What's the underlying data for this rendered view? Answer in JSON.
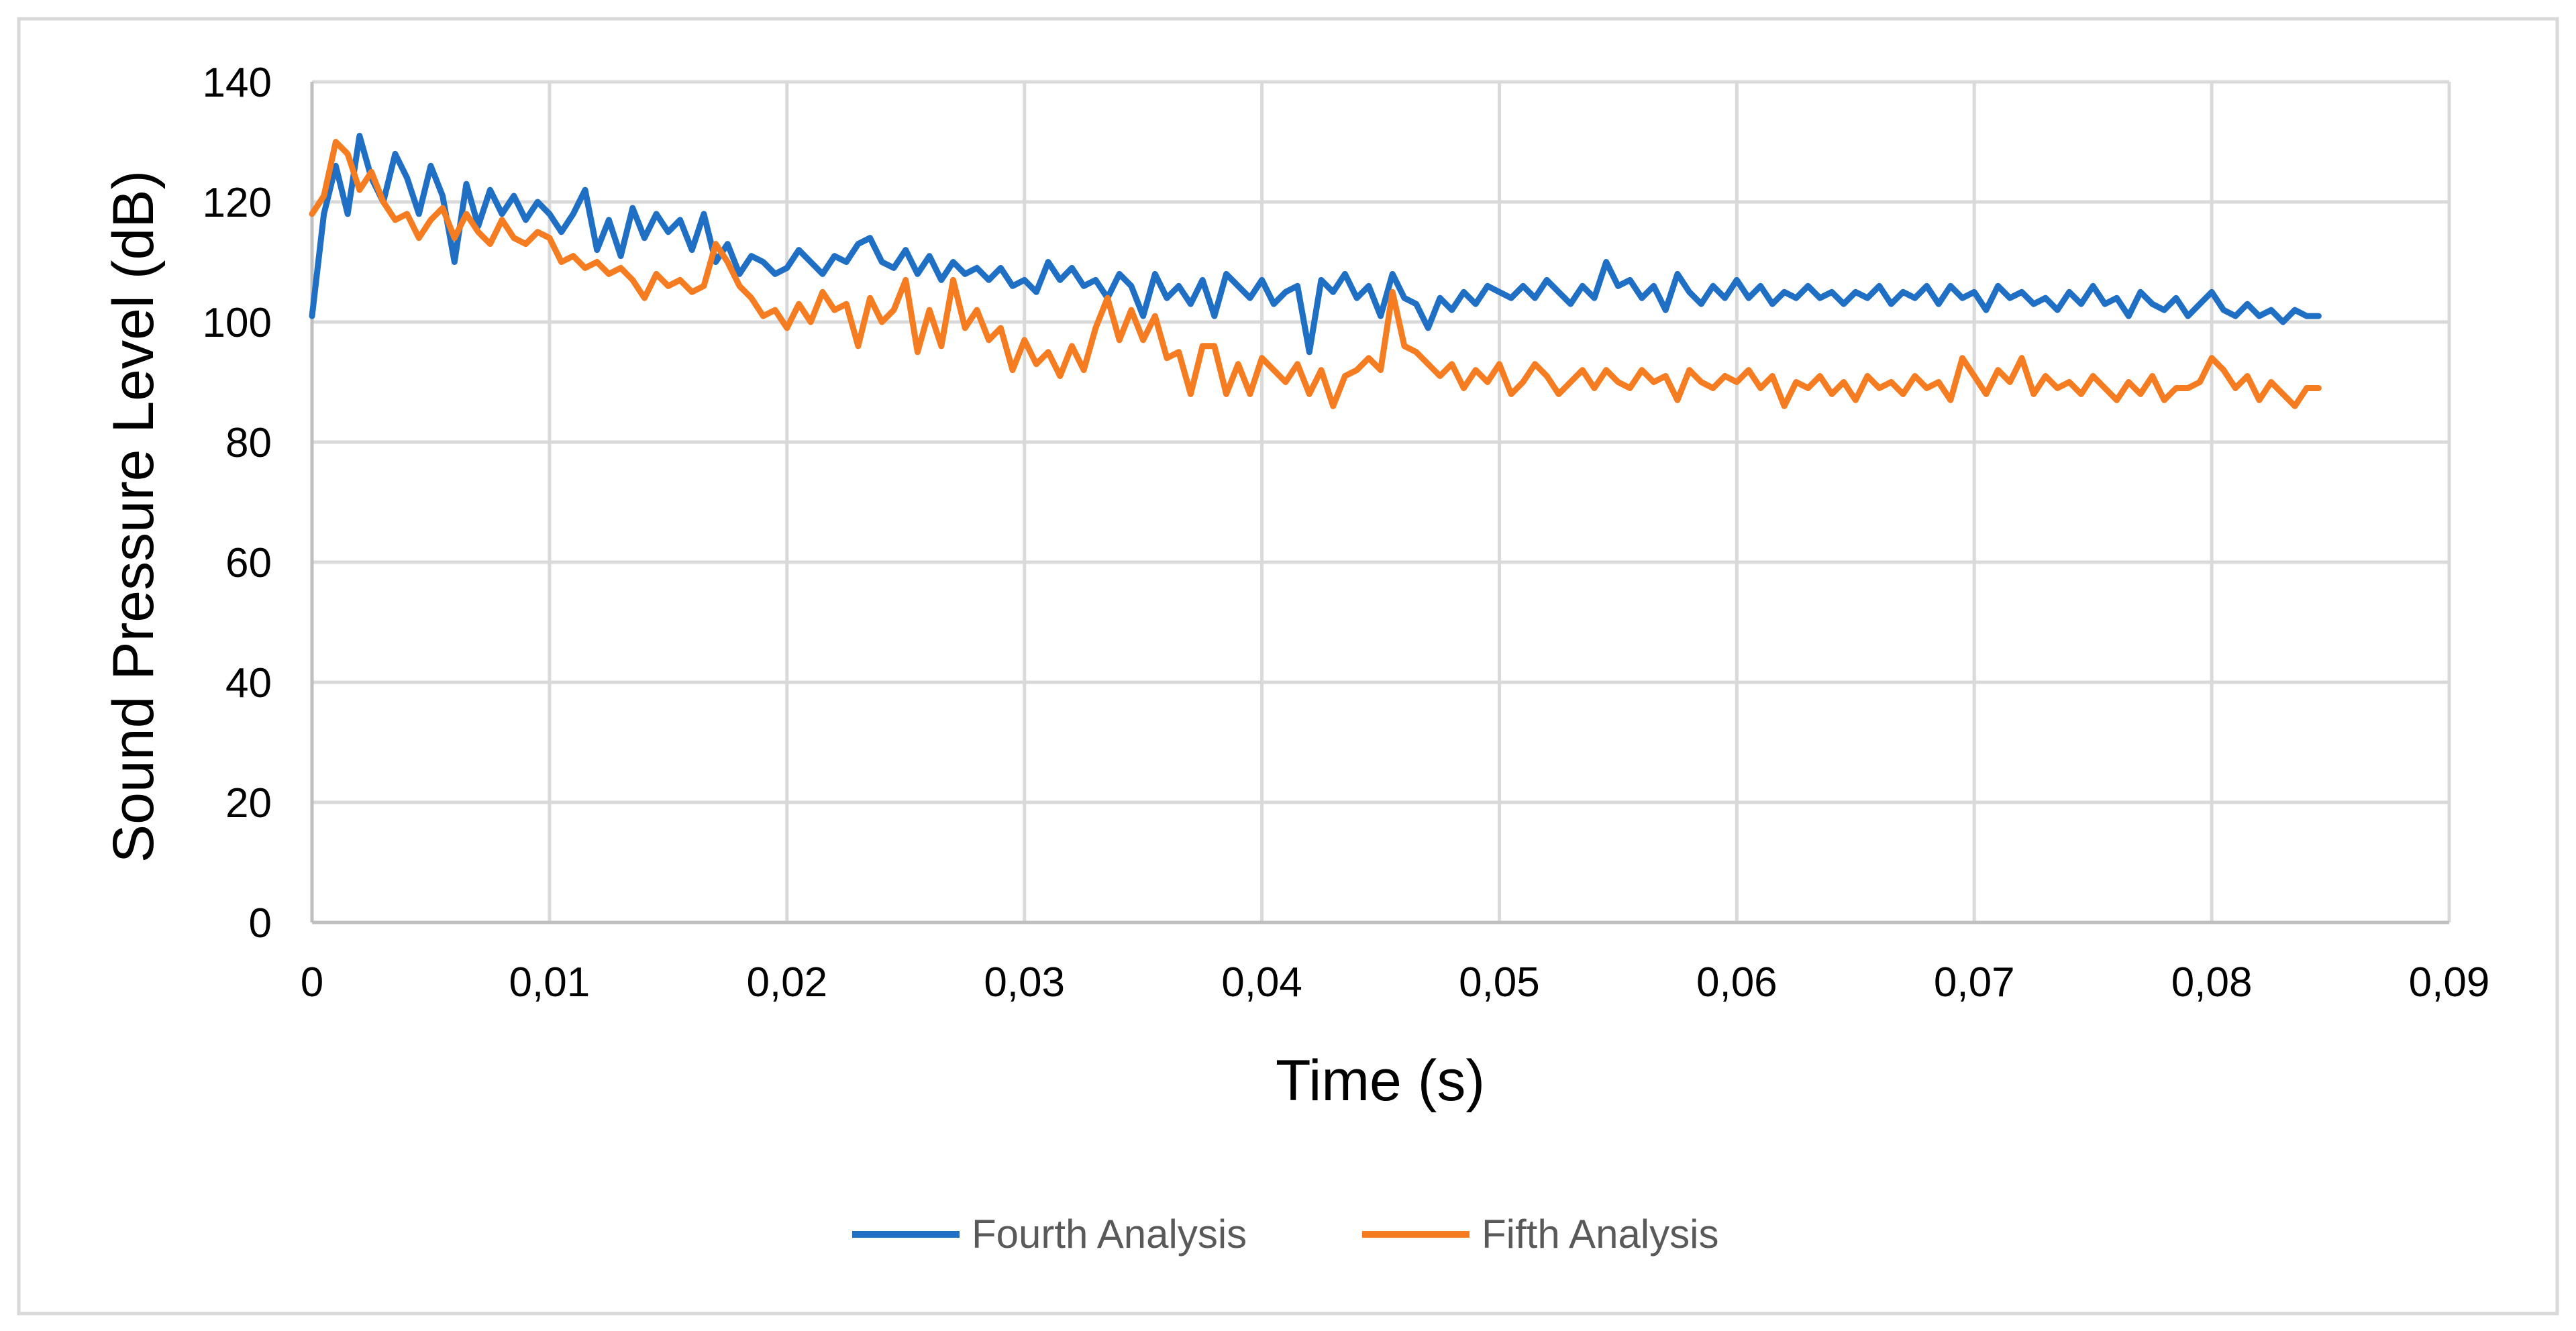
{
  "chart_data": {
    "type": "line",
    "title": "",
    "xlabel": "Time (s)",
    "ylabel": "Sound Pressure Level (dB)",
    "xlim": [
      0,
      0.09
    ],
    "ylim": [
      0,
      140
    ],
    "x_ticks": [
      "0",
      "0,01",
      "0,02",
      "0,03",
      "0,04",
      "0,05",
      "0,06",
      "0,07",
      "0,08",
      "0,09"
    ],
    "y_ticks": [
      "0",
      "20",
      "40",
      "60",
      "80",
      "100",
      "120",
      "140"
    ],
    "grid": true,
    "legend_position": "bottom",
    "series": [
      {
        "name": "Fourth Analysis",
        "color": "#1f6fc5",
        "x": [
          0.0,
          0.0005,
          0.001,
          0.0015,
          0.002,
          0.0025,
          0.003,
          0.0035,
          0.004,
          0.0045,
          0.005,
          0.0055,
          0.006,
          0.0065,
          0.007,
          0.0075,
          0.008,
          0.0085,
          0.009,
          0.0095,
          0.01,
          0.0105,
          0.011,
          0.0115,
          0.012,
          0.0125,
          0.013,
          0.0135,
          0.014,
          0.0145,
          0.015,
          0.0155,
          0.016,
          0.0165,
          0.017,
          0.0175,
          0.018,
          0.0185,
          0.019,
          0.0195,
          0.02,
          0.0205,
          0.021,
          0.0215,
          0.022,
          0.0225,
          0.023,
          0.0235,
          0.024,
          0.0245,
          0.025,
          0.0255,
          0.026,
          0.0265,
          0.027,
          0.0275,
          0.028,
          0.0285,
          0.029,
          0.0295,
          0.03,
          0.0305,
          0.031,
          0.0315,
          0.032,
          0.0325,
          0.033,
          0.0335,
          0.034,
          0.0345,
          0.035,
          0.0355,
          0.036,
          0.0365,
          0.037,
          0.0375,
          0.038,
          0.0385,
          0.039,
          0.0395,
          0.04,
          0.0405,
          0.041,
          0.0415,
          0.042,
          0.0425,
          0.043,
          0.0435,
          0.044,
          0.0445,
          0.045,
          0.0455,
          0.046,
          0.0465,
          0.047,
          0.0475,
          0.048,
          0.0485,
          0.049,
          0.0495,
          0.05,
          0.0505,
          0.051,
          0.0515,
          0.052,
          0.0525,
          0.053,
          0.0535,
          0.054,
          0.0545,
          0.055,
          0.0555,
          0.056,
          0.0565,
          0.057,
          0.0575,
          0.058,
          0.0585,
          0.059,
          0.0595,
          0.06,
          0.0605,
          0.061,
          0.0615,
          0.062,
          0.0625,
          0.063,
          0.0635,
          0.064,
          0.0645,
          0.065,
          0.0655,
          0.066,
          0.0665,
          0.067,
          0.0675,
          0.068,
          0.0685,
          0.069,
          0.0695,
          0.07,
          0.0705,
          0.071,
          0.0715,
          0.072,
          0.0725,
          0.073,
          0.0735,
          0.074,
          0.0745,
          0.075,
          0.0755,
          0.076,
          0.0765,
          0.077,
          0.0775,
          0.078,
          0.0785,
          0.079,
          0.0795,
          0.08,
          0.0805,
          0.081,
          0.0815,
          0.082,
          0.0825,
          0.083,
          0.0835,
          0.084,
          0.0845
        ],
        "values": [
          101,
          118,
          126,
          118,
          131,
          124,
          120,
          128,
          124,
          118,
          126,
          121,
          110,
          123,
          116,
          122,
          118,
          121,
          117,
          120,
          118,
          115,
          118,
          122,
          112,
          117,
          111,
          119,
          114,
          118,
          115,
          117,
          112,
          118,
          110,
          113,
          108,
          111,
          110,
          108,
          109,
          112,
          110,
          108,
          111,
          110,
          113,
          114,
          110,
          109,
          112,
          108,
          111,
          107,
          110,
          108,
          109,
          107,
          109,
          106,
          107,
          105,
          110,
          107,
          109,
          106,
          107,
          104,
          108,
          106,
          101,
          108,
          104,
          106,
          103,
          107,
          101,
          108,
          106,
          104,
          107,
          103,
          105,
          106,
          95,
          107,
          105,
          108,
          104,
          106,
          101,
          108,
          104,
          103,
          99,
          104,
          102,
          105,
          103,
          106,
          105,
          104,
          106,
          104,
          107,
          105,
          103,
          106,
          104,
          110,
          106,
          107,
          104,
          106,
          102,
          108,
          105,
          103,
          106,
          104,
          107,
          104,
          106,
          103,
          105,
          104,
          106,
          104,
          105,
          103,
          105,
          104,
          106,
          103,
          105,
          104,
          106,
          103,
          106,
          104,
          105,
          102,
          106,
          104,
          105,
          103,
          104,
          102,
          105,
          103,
          106,
          103,
          104,
          101,
          105,
          103,
          102,
          104,
          101,
          103,
          105,
          102,
          101,
          103,
          101,
          102,
          100,
          102,
          101,
          101
        ]
      },
      {
        "name": "Fifth Analysis",
        "color": "#f57c20",
        "x": [
          0.0,
          0.0005,
          0.001,
          0.0015,
          0.002,
          0.0025,
          0.003,
          0.0035,
          0.004,
          0.0045,
          0.005,
          0.0055,
          0.006,
          0.0065,
          0.007,
          0.0075,
          0.008,
          0.0085,
          0.009,
          0.0095,
          0.01,
          0.0105,
          0.011,
          0.0115,
          0.012,
          0.0125,
          0.013,
          0.0135,
          0.014,
          0.0145,
          0.015,
          0.0155,
          0.016,
          0.0165,
          0.017,
          0.0175,
          0.018,
          0.0185,
          0.019,
          0.0195,
          0.02,
          0.0205,
          0.021,
          0.0215,
          0.022,
          0.0225,
          0.023,
          0.0235,
          0.024,
          0.0245,
          0.025,
          0.0255,
          0.026,
          0.0265,
          0.027,
          0.0275,
          0.028,
          0.0285,
          0.029,
          0.0295,
          0.03,
          0.0305,
          0.031,
          0.0315,
          0.032,
          0.0325,
          0.033,
          0.0335,
          0.034,
          0.0345,
          0.035,
          0.0355,
          0.036,
          0.0365,
          0.037,
          0.0375,
          0.038,
          0.0385,
          0.039,
          0.0395,
          0.04,
          0.0405,
          0.041,
          0.0415,
          0.042,
          0.0425,
          0.043,
          0.0435,
          0.044,
          0.0445,
          0.045,
          0.0455,
          0.046,
          0.0465,
          0.047,
          0.0475,
          0.048,
          0.0485,
          0.049,
          0.0495,
          0.05,
          0.0505,
          0.051,
          0.0515,
          0.052,
          0.0525,
          0.053,
          0.0535,
          0.054,
          0.0545,
          0.055,
          0.0555,
          0.056,
          0.0565,
          0.057,
          0.0575,
          0.058,
          0.0585,
          0.059,
          0.0595,
          0.06,
          0.0605,
          0.061,
          0.0615,
          0.062,
          0.0625,
          0.063,
          0.0635,
          0.064,
          0.0645,
          0.065,
          0.0655,
          0.066,
          0.0665,
          0.067,
          0.0675,
          0.068,
          0.0685,
          0.069,
          0.0695,
          0.07,
          0.0705,
          0.071,
          0.0715,
          0.072,
          0.0725,
          0.073,
          0.0735,
          0.074,
          0.0745,
          0.075,
          0.0755,
          0.076,
          0.0765,
          0.077,
          0.0775,
          0.078,
          0.0785,
          0.079,
          0.0795,
          0.08,
          0.0805,
          0.081,
          0.0815,
          0.082,
          0.0825,
          0.083,
          0.0835,
          0.084,
          0.0845
        ],
        "values": [
          118,
          121,
          130,
          128,
          122,
          125,
          120,
          117,
          118,
          114,
          117,
          119,
          114,
          118,
          115,
          113,
          117,
          114,
          113,
          115,
          114,
          110,
          111,
          109,
          110,
          108,
          109,
          107,
          104,
          108,
          106,
          107,
          105,
          106,
          113,
          110,
          106,
          104,
          101,
          102,
          99,
          103,
          100,
          105,
          102,
          103,
          96,
          104,
          100,
          102,
          107,
          95,
          102,
          96,
          107,
          99,
          102,
          97,
          99,
          92,
          97,
          93,
          95,
          91,
          96,
          92,
          99,
          104,
          97,
          102,
          97,
          101,
          94,
          95,
          88,
          96,
          96,
          88,
          93,
          88,
          94,
          92,
          90,
          93,
          88,
          92,
          86,
          91,
          92,
          94,
          92,
          105,
          96,
          95,
          93,
          91,
          93,
          89,
          92,
          90,
          93,
          88,
          90,
          93,
          91,
          88,
          90,
          92,
          89,
          92,
          90,
          89,
          92,
          90,
          91,
          87,
          92,
          90,
          89,
          91,
          90,
          92,
          89,
          91,
          86,
          90,
          89,
          91,
          88,
          90,
          87,
          91,
          89,
          90,
          88,
          91,
          89,
          90,
          87,
          94,
          91,
          88,
          92,
          90,
          94,
          88,
          91,
          89,
          90,
          88,
          91,
          89,
          87,
          90,
          88,
          91,
          87,
          89,
          89,
          90,
          94,
          92,
          89,
          91,
          87,
          90,
          88,
          86,
          89,
          89
        ]
      }
    ]
  }
}
